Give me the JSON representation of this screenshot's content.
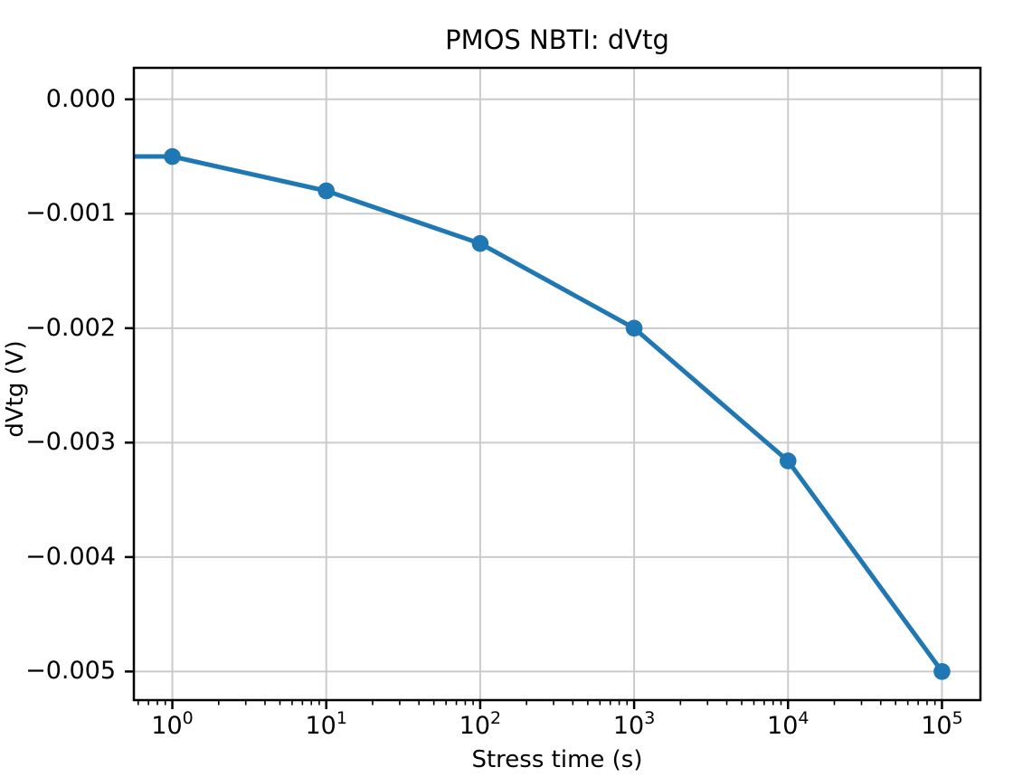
{
  "chart_data": {
    "type": "line",
    "title": "PMOS NBTI: dVtg",
    "xlabel": "Stress time (s)",
    "ylabel": "dVtg (V)",
    "x_scale": "log",
    "x": [
      1,
      10,
      100,
      1000,
      10000,
      100000
    ],
    "y": [
      -0.0005,
      -0.0008,
      -0.00126,
      -0.002,
      -0.00316,
      -0.005
    ],
    "line_enters_from_left_edge_at_y": -0.0005,
    "xlim_log10": [
      -0.25,
      5.25
    ],
    "ylim": [
      -0.00525,
      0.000275
    ],
    "x_tick_exponents": [
      0,
      1,
      2,
      3,
      4,
      5
    ],
    "x_tick_labels": [
      {
        "base": "10",
        "exp": "0"
      },
      {
        "base": "10",
        "exp": "1"
      },
      {
        "base": "10",
        "exp": "2"
      },
      {
        "base": "10",
        "exp": "3"
      },
      {
        "base": "10",
        "exp": "4"
      },
      {
        "base": "10",
        "exp": "5"
      }
    ],
    "y_ticks": [
      0,
      -0.001,
      -0.002,
      -0.003,
      -0.004,
      -0.005
    ],
    "y_tick_labels": [
      "0.000",
      "−0.001",
      "−0.002",
      "−0.003",
      "−0.004",
      "−0.005"
    ],
    "grid": true,
    "legend": null,
    "colors": {
      "line": "#1f77b4",
      "marker": "#1f77b4",
      "grid": "#cbcbcb",
      "axis": "#000000",
      "background": "#ffffff"
    }
  }
}
